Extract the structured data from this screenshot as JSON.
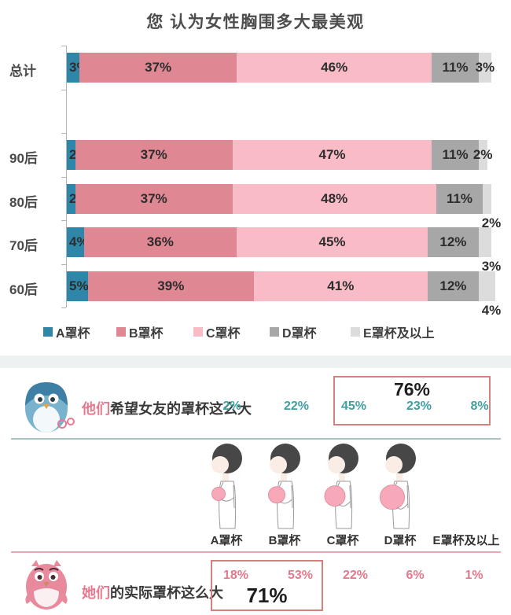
{
  "chart_data": {
    "type": "bar",
    "stacked": true,
    "orientation": "horizontal",
    "percent": true,
    "title": "您 认为女性胸围多大最美观",
    "categories": [
      "总计",
      "90后",
      "80后",
      "70后",
      "60后"
    ],
    "series": [
      {
        "name": "A罩杯",
        "color": "#2E86A8",
        "values": [
          3,
          2,
          2,
          4,
          5
        ]
      },
      {
        "name": "B罩杯",
        "color": "#DF8793",
        "values": [
          37,
          37,
          37,
          36,
          39
        ]
      },
      {
        "name": "C罩杯",
        "color": "#F9BCC7",
        "values": [
          46,
          47,
          48,
          45,
          41
        ]
      },
      {
        "name": "D罩杯",
        "color": "#A7A7A7",
        "values": [
          11,
          11,
          11,
          12,
          12
        ]
      },
      {
        "name": "E罩杯及以上",
        "color": "#DCDCDC",
        "values": [
          3,
          2,
          2,
          3,
          4
        ]
      }
    ],
    "value_suffix": "%",
    "xlim": [
      0,
      100
    ],
    "legend_position": "bottom",
    "last_label_below": [
      false,
      false,
      true,
      true,
      true
    ]
  },
  "wish_row": {
    "caption_highlight": "他们",
    "caption_rest": "希望女友的罩杯这么大",
    "values": [
      "2%",
      "22%",
      "45%",
      "23%",
      "8%"
    ],
    "box_total": "76%"
  },
  "figures": {
    "labels": [
      "A罩杯",
      "B罩杯",
      "C罩杯",
      "D罩杯",
      "E罩杯及以上"
    ]
  },
  "actual_row": {
    "caption_highlight": "她们",
    "caption_rest": "的实际罩杯这么大",
    "values": [
      "18%",
      "53%",
      "22%",
      "6%",
      "1%"
    ],
    "box_total": "71%"
  },
  "colors": {
    "cup_a": "#2E86A8",
    "cup_b": "#DF8793",
    "cup_c": "#F9BCC7",
    "cup_d": "#A7A7A7",
    "cup_e": "#DCDCDC",
    "wish_value": "#3FA0A2",
    "actual_value": "#E4788C",
    "caption_highlight": "#E87A90",
    "highlight_box_border": "#D4807E"
  }
}
